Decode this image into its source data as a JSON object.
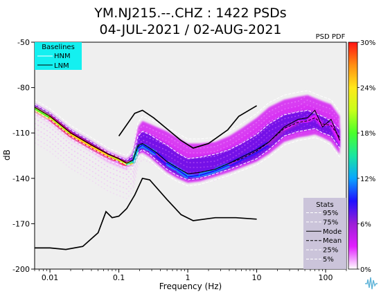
{
  "chart_data": {
    "type": "heatmap",
    "title": "YM.NJ215.--.CHZ : 1422 PSDs",
    "subtitle": "04-JUL-2021 / 02-AUG-2021",
    "xlabel": "Frequency (Hz)",
    "ylabel": "dB",
    "x_scale": "log",
    "xlim": [
      0.006,
      200
    ],
    "ylim": [
      -200,
      -50
    ],
    "x_ticks": [
      {
        "value": 0.01,
        "label": "0.01"
      },
      {
        "value": 0.1,
        "label": "0.1"
      },
      {
        "value": 1,
        "label": "1"
      },
      {
        "value": 10,
        "label": "10"
      },
      {
        "value": 100,
        "label": "100"
      }
    ],
    "y_ticks": [
      {
        "value": -50,
        "label": "-50"
      },
      {
        "value": -80,
        "label": "-80"
      },
      {
        "value": -110,
        "label": "-110"
      },
      {
        "value": -140,
        "label": "-140"
      },
      {
        "value": -170,
        "label": "-170"
      },
      {
        "value": -200,
        "label": "-200"
      }
    ],
    "grid": false,
    "colorbar": {
      "title": "PSD PDF",
      "range": [
        0,
        30
      ],
      "ticks": [
        {
          "value": 0,
          "label": "0%"
        },
        {
          "value": 6,
          "label": "6%"
        },
        {
          "value": 12,
          "label": "12%"
        },
        {
          "value": 18,
          "label": "18%"
        },
        {
          "value": 24,
          "label": "24%"
        },
        {
          "value": 30,
          "label": "30%"
        }
      ],
      "colors": [
        "#ffffff",
        "#e21eff",
        "#9b1fd6",
        "#1f10ff",
        "#0aa5ff",
        "#19e6a0",
        "#49ff2b",
        "#c8ff1a",
        "#ffe81a",
        "#ff8d12",
        "#ff1212"
      ]
    },
    "baselines_legend": {
      "title": "Baselines",
      "items": [
        {
          "name": "HNM",
          "color": "#ffffff"
        },
        {
          "name": "LNM",
          "color": "#000000"
        }
      ]
    },
    "stats_legend": {
      "title": "Stats",
      "items": [
        {
          "name": "95%",
          "style": "dashed",
          "color": "#ffffff"
        },
        {
          "name": "75%",
          "style": "dashed",
          "color": "#ffffff"
        },
        {
          "name": "Mode",
          "style": "solid",
          "color": "#000000"
        },
        {
          "name": "Mean",
          "style": "dashed",
          "color": "#000000"
        },
        {
          "name": "25%",
          "style": "dashed",
          "color": "#ffffff"
        },
        {
          "name": "5%",
          "style": "dashed",
          "color": "#ffffff"
        }
      ]
    },
    "nhnm": {
      "x": [
        0.1,
        0.17,
        0.22,
        0.32,
        0.8,
        1.2,
        2.0,
        3.8,
        5.5,
        10
      ],
      "y": [
        -112,
        -97,
        -95,
        -100,
        -115,
        -120,
        -117,
        -108,
        -99,
        -92
      ]
    },
    "nlnm": {
      "x": [
        0.006,
        0.01,
        0.017,
        0.03,
        0.05,
        0.065,
        0.08,
        0.1,
        0.13,
        0.17,
        0.22,
        0.28,
        0.5,
        0.8,
        1.2,
        2.5,
        5,
        10
      ],
      "y": [
        -186,
        -186,
        -187,
        -185,
        -176,
        -162,
        -166,
        -165,
        -160,
        -151,
        -140,
        -141,
        -154,
        -164,
        -168,
        -166,
        -166,
        -167
      ]
    },
    "percentiles": {
      "x": [
        0.006,
        0.01,
        0.02,
        0.04,
        0.07,
        0.1,
        0.13,
        0.16,
        0.19,
        0.22,
        0.28,
        0.35,
        0.5,
        0.7,
        1.0,
        1.5,
        2.5,
        4,
        6,
        10,
        15,
        25,
        40,
        55,
        70,
        90,
        120,
        160
      ],
      "p95": [
        -88,
        -94,
        -105,
        -113,
        -120,
        -123,
        -125,
        -120,
        -103,
        -99,
        -101,
        -103,
        -106,
        -110,
        -114,
        -114,
        -113,
        -109,
        -104,
        -97,
        -90,
        -85,
        -83,
        -82,
        -84,
        -86,
        -88,
        -96
      ],
      "p75": [
        -91,
        -97,
        -108,
        -116,
        -123,
        -126,
        -128,
        -125,
        -112,
        -109,
        -111,
        -114,
        -118,
        -123,
        -127,
        -126,
        -124,
        -121,
        -117,
        -111,
        -104,
        -98,
        -96,
        -95,
        -97,
        -99,
        -102,
        -108
      ],
      "mode": [
        -93,
        -99,
        -110,
        -118,
        -124,
        -127,
        -130,
        -128,
        -118,
        -117,
        -120,
        -123,
        -129,
        -133,
        -137,
        -136,
        -134,
        -130,
        -126,
        -121,
        -116,
        -106,
        -101,
        -100,
        -95,
        -106,
        -101,
        -115
      ],
      "mean": [
        -93,
        -99,
        -110,
        -118,
        -124,
        -127,
        -130,
        -128,
        -119,
        -117,
        -120,
        -123,
        -129,
        -133,
        -137,
        -136,
        -134,
        -130,
        -127,
        -122,
        -116,
        -107,
        -103,
        -102,
        -100,
        -104,
        -105,
        -113
      ],
      "p25": [
        -95,
        -101,
        -112,
        -120,
        -126,
        -129,
        -131,
        -131,
        -123,
        -121,
        -124,
        -128,
        -134,
        -138,
        -141,
        -140,
        -137,
        -134,
        -131,
        -127,
        -121,
        -112,
        -109,
        -108,
        -107,
        -110,
        -112,
        -120
      ],
      "p5": [
        -97,
        -103,
        -114,
        -122,
        -128,
        -131,
        -133,
        -133,
        -126,
        -125,
        -128,
        -132,
        -138,
        -142,
        -145,
        -144,
        -141,
        -138,
        -135,
        -131,
        -126,
        -118,
        -115,
        -114,
        -113,
        -115,
        -118,
        -126
      ]
    },
    "density_cores": {
      "x": [
        0.006,
        0.01,
        0.02,
        0.04,
        0.07,
        0.1,
        0.13,
        0.16,
        0.19,
        0.22,
        0.28,
        0.35,
        0.5,
        0.7,
        1.0,
        1.5,
        2.5,
        4,
        6,
        10,
        15,
        25,
        40,
        55,
        70,
        90,
        120,
        160
      ],
      "y": [
        -94,
        -100,
        -111,
        -119,
        -125,
        -128,
        -131,
        -129,
        -120,
        -118,
        -121,
        -124,
        -130,
        -134,
        -139,
        -138,
        -135,
        -131,
        -127,
        -122,
        -117,
        -108,
        -103,
        -102,
        -99,
        -105,
        -104,
        -116
      ],
      "peak_percent": [
        16,
        22,
        27,
        30,
        28,
        26,
        20,
        14,
        10,
        11,
        10,
        9,
        9,
        10,
        11,
        11,
        10,
        9,
        8,
        7,
        6,
        4,
        3,
        3,
        3,
        3,
        3,
        2
      ]
    }
  }
}
